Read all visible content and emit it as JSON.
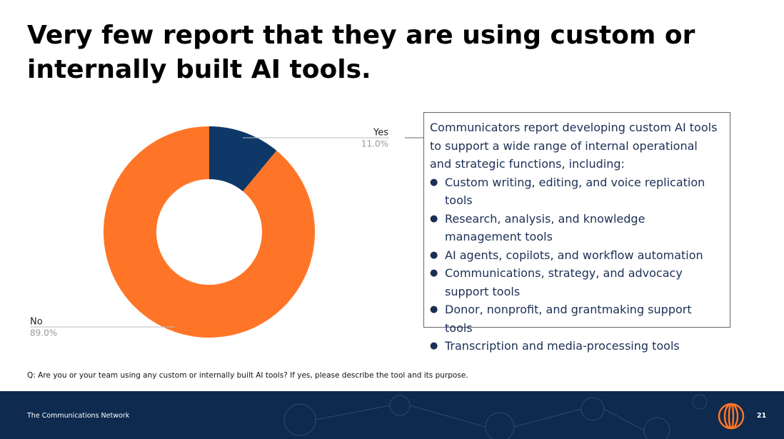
{
  "chart_data": {
    "type": "donut",
    "title": "Very few report that they are using custom or internally built AI tools.",
    "categories": [
      "Yes",
      "No"
    ],
    "values": [
      11,
      89
    ],
    "value_labels": [
      "11.0%",
      "89.0%"
    ],
    "colors": [
      "#0e3868",
      "#ff7527"
    ]
  },
  "callout": {
    "intro": "Communicators report developing custom AI tools to support a wide range of internal operational and strategic functions, including:",
    "items": [
      "Custom writing, editing, and voice replication tools",
      "Research, analysis, and knowledge management tools",
      "AI agents, copilots, and workflow automation",
      "Communications, strategy, and advocacy support tools",
      "Donor, nonprofit, and grantmaking support tools",
      "Transcription and media-processing tools"
    ]
  },
  "footnote": "Q: Are you or your team using any custom or internally built AI tools? If yes, please describe the tool and its purpose.",
  "footer": {
    "organization": "The Communications Network",
    "page_number": "21"
  }
}
